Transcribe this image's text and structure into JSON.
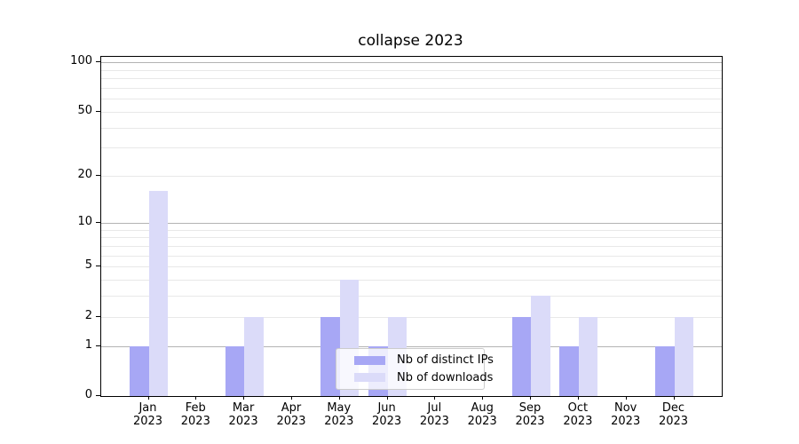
{
  "chart_data": {
    "type": "bar",
    "title": "collapse 2023",
    "categories": [
      "Jan",
      "Feb",
      "Mar",
      "Apr",
      "May",
      "Jun",
      "Jul",
      "Aug",
      "Sep",
      "Oct",
      "Nov",
      "Dec"
    ],
    "year": "2023",
    "series": [
      {
        "name": "Nb of distinct IPs",
        "color_key": "distinct_ips",
        "values": [
          1,
          0,
          1,
          0,
          2,
          1,
          0,
          0,
          2,
          1,
          0,
          1
        ]
      },
      {
        "name": "Nb of downloads",
        "color_key": "downloads",
        "values": [
          16,
          0,
          2,
          0,
          4,
          2,
          0,
          0,
          3,
          2,
          0,
          2
        ]
      }
    ],
    "yscale": "log1p",
    "ylim": [
      0,
      108
    ],
    "yticks": [
      0,
      1,
      2,
      5,
      10,
      20,
      50,
      100
    ],
    "major_gridlines": [
      1,
      10,
      100
    ],
    "minor_gridlines": [
      2,
      3,
      4,
      5,
      6,
      7,
      8,
      9,
      20,
      30,
      40,
      50,
      60,
      70,
      80,
      90
    ],
    "grid": true,
    "legend_position": "lower center"
  },
  "colors": {
    "distinct_ips": "#a7a7f5",
    "downloads": "#dbdbf9",
    "grid_major": "#b3b3b3",
    "grid_minor": "#e8e8e8",
    "axis": "#000000",
    "legend_border": "#cccccc",
    "text": "#000000"
  },
  "legend": {
    "items": [
      {
        "label": "Nb of distinct IPs",
        "color_key": "distinct_ips"
      },
      {
        "label": "Nb of downloads",
        "color_key": "downloads"
      }
    ]
  }
}
